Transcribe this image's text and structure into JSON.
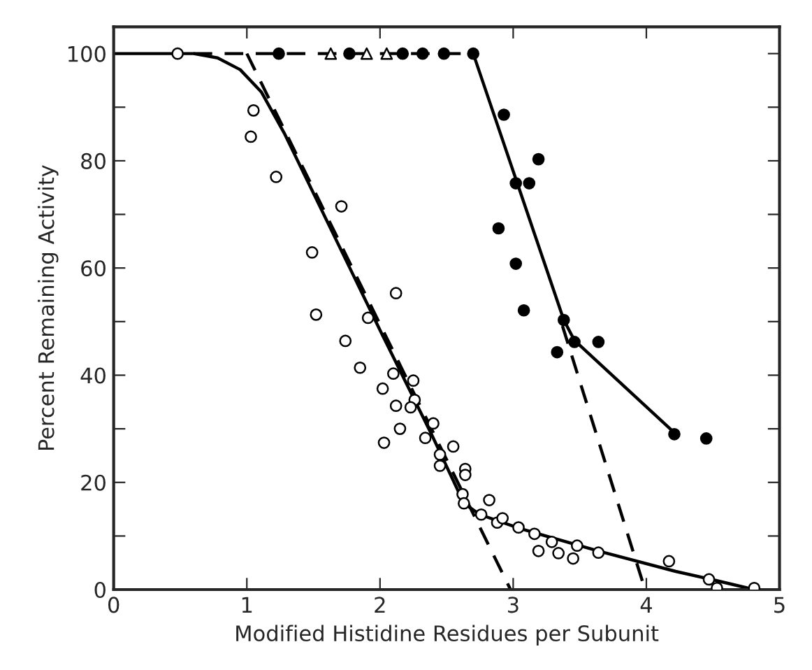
{
  "chart_data": {
    "type": "scatter",
    "xlabel": "Modified Histidine Residues per Subunit",
    "ylabel": "Percent Remaining Activity",
    "xlim": [
      0,
      5
    ],
    "ylim": [
      0,
      105
    ],
    "xticks": [
      0,
      1,
      2,
      3,
      4,
      5
    ],
    "yticks": [
      0,
      {
        "value": 10,
        "label": null
      },
      20,
      {
        "value": 30,
        "label": null
      },
      40,
      {
        "value": 50,
        "label": null
      },
      60,
      {
        "value": 70,
        "label": null
      },
      80,
      {
        "value": 90,
        "label": null
      },
      100
    ],
    "grid": false,
    "legend": false,
    "series": [
      {
        "type": "line",
        "color": "#000000",
        "line_style": "solid",
        "marker": "none",
        "x": [
          0,
          0.6,
          0.78,
          0.95,
          1.11,
          1.28,
          2.01,
          2.39,
          2.63,
          2.75,
          3.05,
          3.64,
          4.22,
          4.49,
          4.76
        ],
        "values": [
          100,
          100,
          99.2,
          97,
          92.8,
          85.2,
          47.9,
          28.8,
          16.1,
          14,
          11.4,
          7.2,
          3.4,
          1.9,
          0.3
        ]
      },
      {
        "type": "line",
        "color": "#000000",
        "line_style": "dashed",
        "marker": "none",
        "x": [
          0.6,
          2.7
        ],
        "values": [
          100,
          100
        ]
      },
      {
        "type": "line",
        "color": "#000000",
        "line_style": "solid",
        "marker": "none",
        "x": [
          2.7,
          3.38,
          3.46,
          4.2
        ],
        "values": [
          100,
          50.3,
          46.5,
          29.5
        ]
      },
      {
        "type": "line",
        "color": "#000000",
        "line_style": "dashed",
        "marker": "none",
        "x": [
          1.0,
          2.98
        ],
        "values": [
          100,
          0
        ]
      },
      {
        "type": "line",
        "color": "#000000",
        "line_style": "dashed",
        "marker": "none",
        "x": [
          3.37,
          3.99
        ],
        "values": [
          49.2,
          0
        ]
      },
      {
        "color": "#ffffff",
        "marker": "circle",
        "x": [
          0.48,
          1.05,
          1.03,
          1.22,
          1.71,
          1.49,
          2.12,
          1.52,
          1.91,
          1.74,
          1.85,
          2.1,
          2.02,
          2.25,
          2.12,
          2.26,
          2.23,
          2.15,
          2.03,
          2.34,
          2.4,
          2.45,
          2.45,
          2.55,
          2.64,
          2.64,
          2.62,
          2.63,
          2.82,
          2.76,
          2.88,
          2.92,
          3.04,
          3.16,
          3.19,
          3.29,
          3.34,
          3.45,
          3.48,
          3.64,
          4.17,
          4.47,
          4.53,
          4.81
        ],
        "values": [
          100,
          89.4,
          84.5,
          77,
          71.5,
          62.9,
          55.3,
          51.3,
          50.7,
          46.4,
          41.4,
          40.3,
          37.5,
          39,
          34.3,
          35.4,
          34,
          30,
          27.4,
          28.3,
          31,
          25.2,
          23.1,
          26.7,
          22.5,
          21.4,
          17.8,
          16.1,
          16.7,
          14,
          12.5,
          13.3,
          11.6,
          10.4,
          7.2,
          8.9,
          6.8,
          5.8,
          8.2,
          6.9,
          5.3,
          1.9,
          0.3,
          0.3
        ]
      },
      {
        "color": "#000000",
        "marker": "circle",
        "x": [
          1.24,
          1.77,
          2.17,
          2.32,
          2.48,
          2.7,
          2.93,
          3.19,
          3.02,
          3.12,
          2.89,
          3.02,
          3.08,
          3.38,
          3.33,
          3.46,
          3.64,
          4.21,
          4.45
        ],
        "values": [
          100,
          100,
          100,
          100,
          100,
          100,
          88.6,
          80.3,
          75.8,
          75.8,
          67.4,
          60.8,
          52.1,
          50.3,
          44.3,
          46.2,
          46.2,
          29,
          28.2
        ]
      },
      {
        "color": "#ffffff",
        "marker": "triangle",
        "x": [
          1.63,
          1.9,
          2.05
        ],
        "values": [
          100,
          100,
          100
        ]
      }
    ]
  }
}
